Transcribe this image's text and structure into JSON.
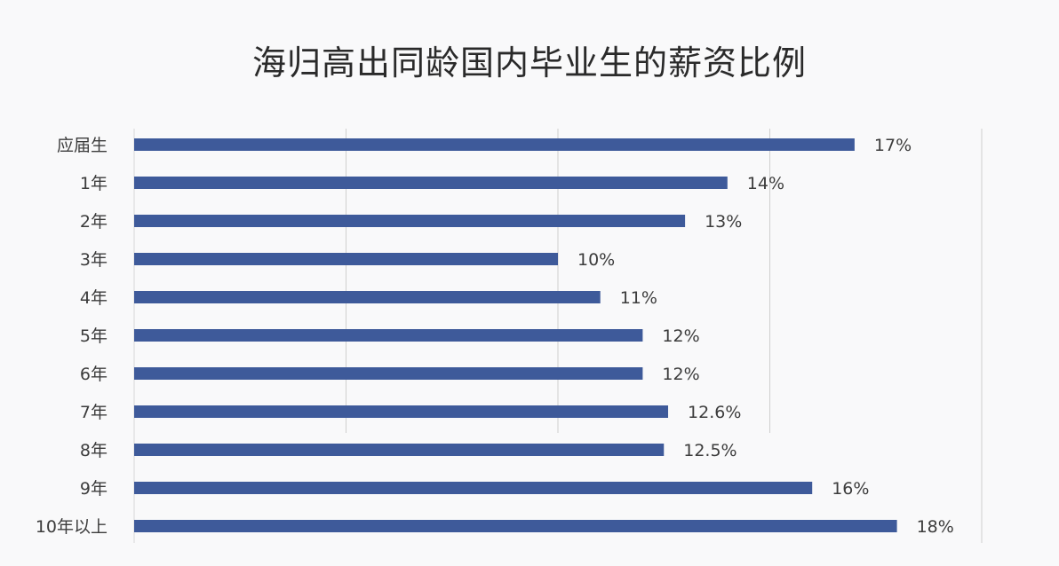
{
  "chart_data": {
    "type": "bar",
    "orientation": "horizontal",
    "title": "海归高出同龄国内毕业生的薪资比例",
    "categories": [
      "应届生",
      "1年",
      "2年",
      "3年",
      "4年",
      "5年",
      "6年",
      "7年",
      "8年",
      "9年",
      "10年以上"
    ],
    "values": [
      17,
      14,
      13,
      10,
      11,
      12,
      12,
      12.6,
      12.5,
      16,
      18
    ],
    "data_labels": [
      "17%",
      "14%",
      "13%",
      "10%",
      "11%",
      "12%",
      "12%",
      "12.6%",
      "12.5%",
      "16%",
      "18%"
    ],
    "xlim": [
      0,
      20
    ],
    "grid": true,
    "bar_color": "#3e5a9a"
  }
}
